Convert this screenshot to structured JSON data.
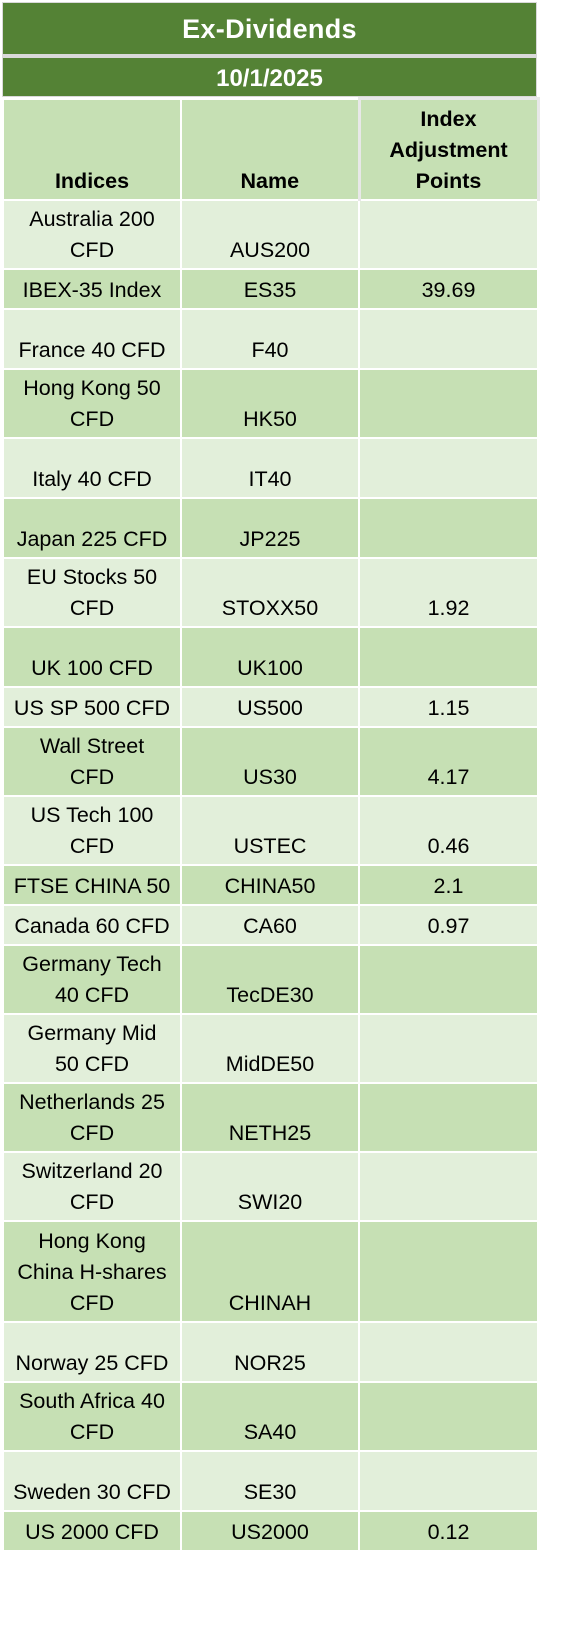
{
  "header": {
    "title": "Ex-Dividends",
    "date": "10/1/2025"
  },
  "columns": {
    "indices": "Indices",
    "name": "Name",
    "points_line1": "Index",
    "points_line2": "Adjustment",
    "points_line3": "Points"
  },
  "rows": [
    {
      "index_l1": "Australia 200",
      "index_l2": "CFD",
      "index_l3": "",
      "name": "AUS200",
      "points": ""
    },
    {
      "index_l1": "IBEX-35 Index",
      "index_l2": "",
      "index_l3": "",
      "name": "ES35",
      "points": "39.69"
    },
    {
      "index_l1": "France 40 CFD",
      "index_l2": "",
      "index_l3": "",
      "name": "F40",
      "points": ""
    },
    {
      "index_l1": "Hong Kong 50",
      "index_l2": "CFD",
      "index_l3": "",
      "name": "HK50",
      "points": ""
    },
    {
      "index_l1": "Italy 40 CFD",
      "index_l2": "",
      "index_l3": "",
      "name": "IT40",
      "points": ""
    },
    {
      "index_l1": "Japan 225 CFD",
      "index_l2": "",
      "index_l3": "",
      "name": "JP225",
      "points": ""
    },
    {
      "index_l1": "EU Stocks 50",
      "index_l2": "CFD",
      "index_l3": "",
      "name": "STOXX50",
      "points": "1.92"
    },
    {
      "index_l1": "UK 100 CFD",
      "index_l2": "",
      "index_l3": "",
      "name": "UK100",
      "points": ""
    },
    {
      "index_l1": "US SP 500 CFD",
      "index_l2": "",
      "index_l3": "",
      "name": "US500",
      "points": "1.15"
    },
    {
      "index_l1": "Wall Street",
      "index_l2": "CFD",
      "index_l3": "",
      "name": "US30",
      "points": "4.17"
    },
    {
      "index_l1": "US Tech 100",
      "index_l2": "CFD",
      "index_l3": "",
      "name": "USTEC",
      "points": "0.46"
    },
    {
      "index_l1": "FTSE CHINA 50",
      "index_l2": "",
      "index_l3": "",
      "name": "CHINA50",
      "points": "2.1"
    },
    {
      "index_l1": "Canada 60 CFD",
      "index_l2": "",
      "index_l3": "",
      "name": "CA60",
      "points": "0.97"
    },
    {
      "index_l1": "Germany Tech",
      "index_l2": "40 CFD",
      "index_l3": "",
      "name": "TecDE30",
      "points": ""
    },
    {
      "index_l1": "Germany Mid",
      "index_l2": "50 CFD",
      "index_l3": "",
      "name": "MidDE50",
      "points": ""
    },
    {
      "index_l1": "Netherlands 25",
      "index_l2": "CFD",
      "index_l3": "",
      "name": "NETH25",
      "points": ""
    },
    {
      "index_l1": "Switzerland 20",
      "index_l2": "CFD",
      "index_l3": "",
      "name": "SWI20",
      "points": ""
    },
    {
      "index_l1": "Hong Kong",
      "index_l2": "China H-shares",
      "index_l3": "CFD",
      "name": "CHINAH",
      "points": ""
    },
    {
      "index_l1": "Norway 25 CFD",
      "index_l2": "",
      "index_l3": "",
      "name": "NOR25",
      "points": ""
    },
    {
      "index_l1": "South Africa 40",
      "index_l2": "CFD",
      "index_l3": "",
      "name": "SA40",
      "points": ""
    },
    {
      "index_l1": "Sweden 30 CFD",
      "index_l2": "",
      "index_l3": "",
      "name": "SE30",
      "points": ""
    },
    {
      "index_l1": "US 2000 CFD",
      "index_l2": "",
      "index_l3": "",
      "name": "US2000",
      "points": "0.12"
    }
  ],
  "colors": {
    "header_band": "#548235",
    "row_light": "#e2efda",
    "row_dark": "#c6e0b4"
  }
}
